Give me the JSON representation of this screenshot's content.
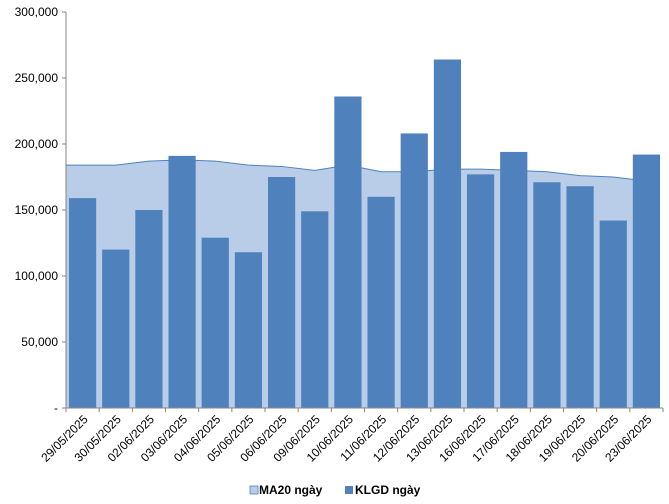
{
  "chart_data": {
    "type": "bar",
    "categories": [
      "29/05/2025",
      "30/05/2025",
      "02/06/2025",
      "03/06/2025",
      "04/06/2025",
      "05/06/2025",
      "06/06/2025",
      "09/06/2025",
      "10/06/2025",
      "11/06/2025",
      "12/06/2025",
      "13/06/2025",
      "16/06/2025",
      "17/06/2025",
      "18/06/2025",
      "19/06/2025",
      "20/06/2025",
      "23/06/2025"
    ],
    "series": [
      {
        "name": "MA20 ngày",
        "type": "area",
        "color": "#b9cde8",
        "values": [
          184000,
          184000,
          187000,
          188000,
          187000,
          184000,
          183000,
          180000,
          184000,
          179000,
          179000,
          181000,
          181000,
          180000,
          179000,
          176000,
          175000,
          172000
        ]
      },
      {
        "name": "KLGD ngày",
        "type": "bar",
        "color": "#4f81bd",
        "values": [
          159000,
          120000,
          150000,
          191000,
          129000,
          118000,
          175000,
          149000,
          236000,
          160000,
          208000,
          264000,
          177000,
          194000,
          171000,
          168000,
          142000,
          192000
        ]
      }
    ],
    "yticks": [
      "-",
      "50,000",
      "100,000",
      "150,000",
      "200,000",
      "250,000",
      "300,000"
    ],
    "ylim": [
      0,
      300000
    ],
    "legend_position": "bottom"
  }
}
